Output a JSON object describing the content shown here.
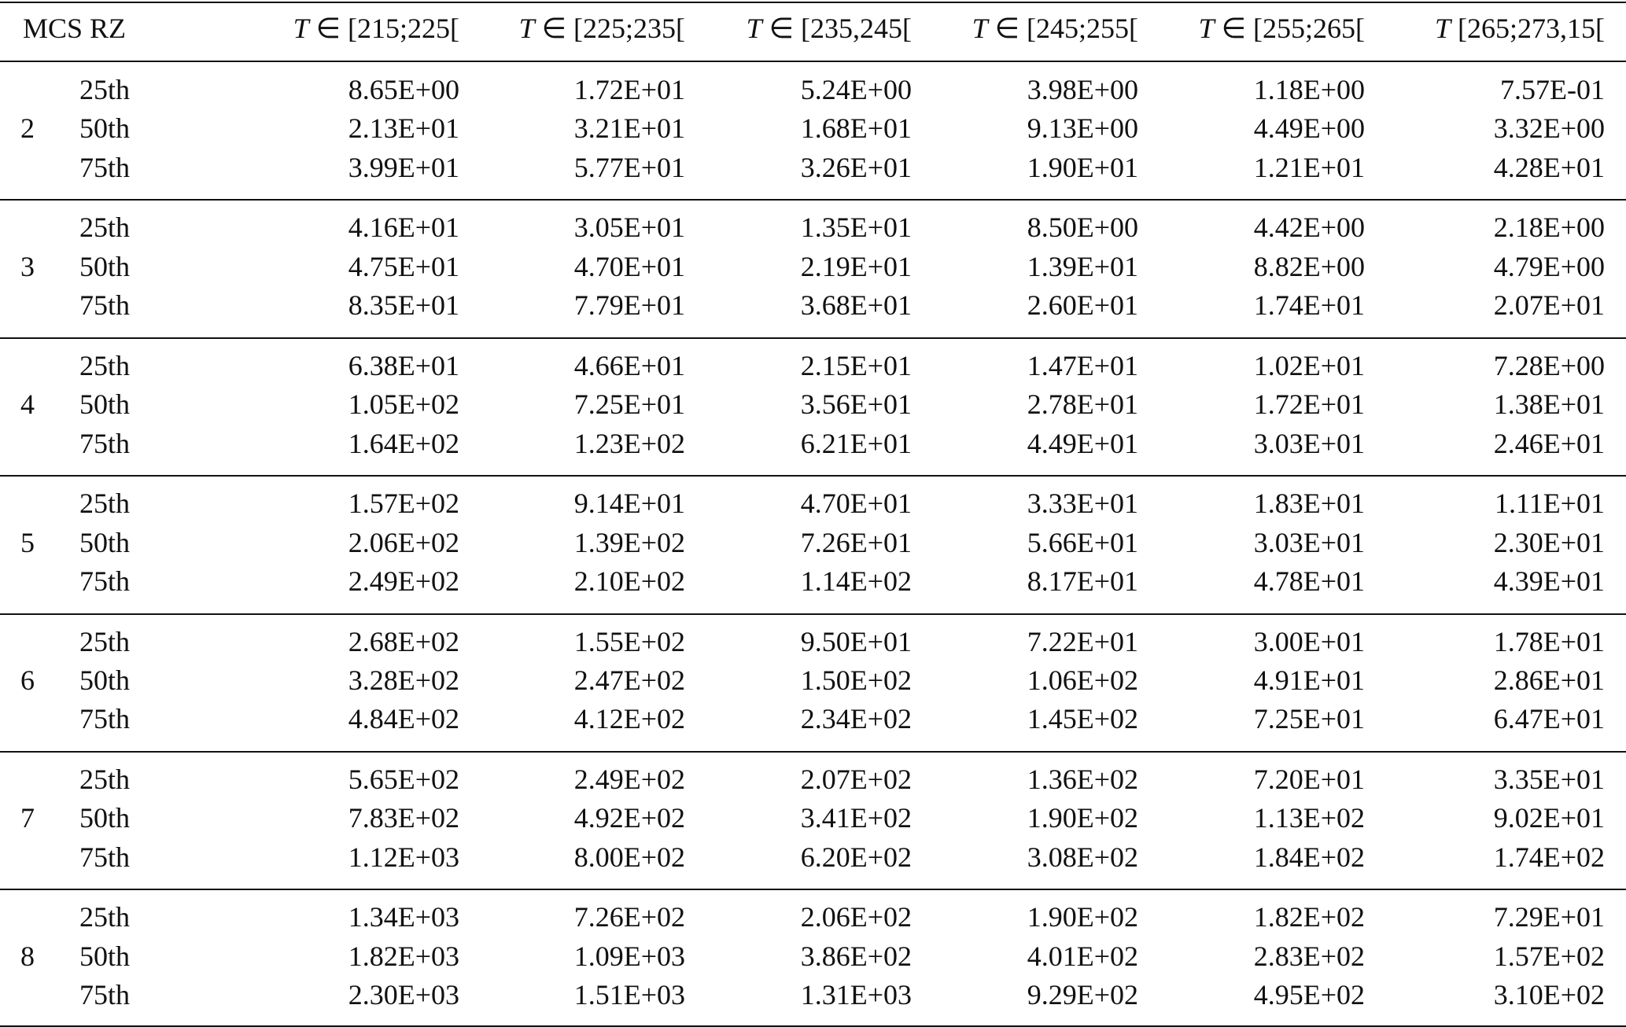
{
  "table": {
    "header": {
      "first": "MCS RZ",
      "columns": [
        {
          "symbol": "T",
          "label": "∈ [215;225["
        },
        {
          "symbol": "T",
          "label": "∈ [225;235["
        },
        {
          "symbol": "T",
          "label": "∈ [235,245["
        },
        {
          "symbol": "T",
          "label": "∈ [245;255["
        },
        {
          "symbol": "T",
          "label": "∈ [255;265["
        },
        {
          "symbol": "T",
          "label": "[265;273,15["
        }
      ]
    },
    "groups": [
      {
        "rz": "2",
        "rows": [
          {
            "percentile": "25th",
            "values": [
              "8.65E+00",
              "1.72E+01",
              "5.24E+00",
              "3.98E+00",
              "1.18E+00",
              "7.57E-01"
            ]
          },
          {
            "percentile": "50th",
            "values": [
              "2.13E+01",
              "3.21E+01",
              "1.68E+01",
              "9.13E+00",
              "4.49E+00",
              "3.32E+00"
            ]
          },
          {
            "percentile": "75th",
            "values": [
              "3.99E+01",
              "5.77E+01",
              "3.26E+01",
              "1.90E+01",
              "1.21E+01",
              "4.28E+01"
            ]
          }
        ]
      },
      {
        "rz": "3",
        "rows": [
          {
            "percentile": "25th",
            "values": [
              "4.16E+01",
              "3.05E+01",
              "1.35E+01",
              "8.50E+00",
              "4.42E+00",
              "2.18E+00"
            ]
          },
          {
            "percentile": "50th",
            "values": [
              "4.75E+01",
              "4.70E+01",
              "2.19E+01",
              "1.39E+01",
              "8.82E+00",
              "4.79E+00"
            ]
          },
          {
            "percentile": "75th",
            "values": [
              "8.35E+01",
              "7.79E+01",
              "3.68E+01",
              "2.60E+01",
              "1.74E+01",
              "2.07E+01"
            ]
          }
        ]
      },
      {
        "rz": "4",
        "rows": [
          {
            "percentile": "25th",
            "values": [
              "6.38E+01",
              "4.66E+01",
              "2.15E+01",
              "1.47E+01",
              "1.02E+01",
              "7.28E+00"
            ]
          },
          {
            "percentile": "50th",
            "values": [
              "1.05E+02",
              "7.25E+01",
              "3.56E+01",
              "2.78E+01",
              "1.72E+01",
              "1.38E+01"
            ]
          },
          {
            "percentile": "75th",
            "values": [
              "1.64E+02",
              "1.23E+02",
              "6.21E+01",
              "4.49E+01",
              "3.03E+01",
              "2.46E+01"
            ]
          }
        ]
      },
      {
        "rz": "5",
        "rows": [
          {
            "percentile": "25th",
            "values": [
              "1.57E+02",
              "9.14E+01",
              "4.70E+01",
              "3.33E+01",
              "1.83E+01",
              "1.11E+01"
            ]
          },
          {
            "percentile": "50th",
            "values": [
              "2.06E+02",
              "1.39E+02",
              "7.26E+01",
              "5.66E+01",
              "3.03E+01",
              "2.30E+01"
            ]
          },
          {
            "percentile": "75th",
            "values": [
              "2.49E+02",
              "2.10E+02",
              "1.14E+02",
              "8.17E+01",
              "4.78E+01",
              "4.39E+01"
            ]
          }
        ]
      },
      {
        "rz": "6",
        "rows": [
          {
            "percentile": "25th",
            "values": [
              "2.68E+02",
              "1.55E+02",
              "9.50E+01",
              "7.22E+01",
              "3.00E+01",
              "1.78E+01"
            ]
          },
          {
            "percentile": "50th",
            "values": [
              "3.28E+02",
              "2.47E+02",
              "1.50E+02",
              "1.06E+02",
              "4.91E+01",
              "2.86E+01"
            ]
          },
          {
            "percentile": "75th",
            "values": [
              "4.84E+02",
              "4.12E+02",
              "2.34E+02",
              "1.45E+02",
              "7.25E+01",
              "6.47E+01"
            ]
          }
        ]
      },
      {
        "rz": "7",
        "rows": [
          {
            "percentile": "25th",
            "values": [
              "5.65E+02",
              "2.49E+02",
              "2.07E+02",
              "1.36E+02",
              "7.20E+01",
              "3.35E+01"
            ]
          },
          {
            "percentile": "50th",
            "values": [
              "7.83E+02",
              "4.92E+02",
              "3.41E+02",
              "1.90E+02",
              "1.13E+02",
              "9.02E+01"
            ]
          },
          {
            "percentile": "75th",
            "values": [
              "1.12E+03",
              "8.00E+02",
              "6.20E+02",
              "3.08E+02",
              "1.84E+02",
              "1.74E+02"
            ]
          }
        ]
      },
      {
        "rz": "8",
        "rows": [
          {
            "percentile": "25th",
            "values": [
              "1.34E+03",
              "7.26E+02",
              "2.06E+02",
              "1.90E+02",
              "1.82E+02",
              "7.29E+01"
            ]
          },
          {
            "percentile": "50th",
            "values": [
              "1.82E+03",
              "1.09E+03",
              "3.86E+02",
              "4.01E+02",
              "2.83E+02",
              "1.57E+02"
            ]
          },
          {
            "percentile": "75th",
            "values": [
              "2.30E+03",
              "1.51E+03",
              "1.31E+03",
              "9.29E+02",
              "4.95E+02",
              "3.10E+02"
            ]
          }
        ]
      }
    ]
  }
}
